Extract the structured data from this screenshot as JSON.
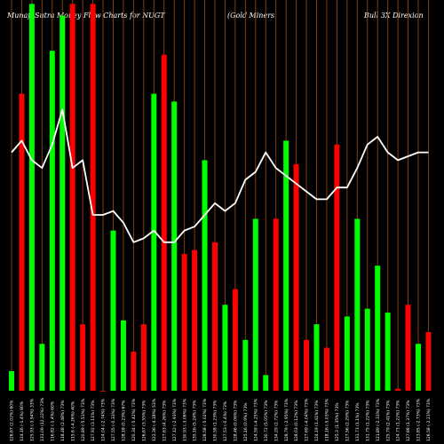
{
  "header": {
    "left": "MunafaSutra Money Flow Charts for NUGT",
    "middle": "(Gold Miners",
    "right": "Bull 3X  Direxion"
  },
  "chart_data": {
    "type": "bar",
    "title": "MunafaSutra Money Flow Charts for NUGT",
    "subtitle": "(Gold Miners Bull 3X Direxion",
    "colors": {
      "up": "#00ff00",
      "down": "#ff0000",
      "line": "#ffffff",
      "grid": "#8B4513",
      "background": "#000000"
    },
    "ylim": [
      0,
      100
    ],
    "categories": [
      "126.67 (2.02%) 60%",
      "124.16 (-1.4%) 80%",
      "125.93 (-3.94%) 33%",
      "131.09 (12.22%) 73%",
      "116.82 (-1.4%) 60%",
      "118.48 (2.48%) 73%",
      "115.6 (-4.26%) 40%",
      "120.89 (-5.51%) 73%",
      "127.92 (3.11%) 73%",
      "124.04 (-2.74%) 73%",
      "127.55 (-0.33%) 73%",
      "128.18 (0.23%) 67%",
      "120.34 (-5.42%) 73%",
      "126.67 (3.55%) 73%",
      "122.36 (-4.18%) 53%",
      "127.63 (4.26%) 73%",
      "127.12 (-2.93%) 73%",
      "130.93 (-3.06%) 73%",
      "135.16 (5.24%) 73%",
      "128.58 (-5.02%) 73%",
      "130.58 (1.23%) 73%",
      "127.53 (-0.4%) 73%",
      "128.46 (0.06%) 73%",
      "125.16 (0.9%) 73%",
      "124.59 (-4.25%) 73%",
      "130.72 (5.05%) 73%",
      "134.29 (2.72%) 73%",
      "128.79 (-2.95%) 73%",
      "128.03 (0.12%) 73%",
      "127.69 (-4.04%) 73%",
      "124.19 (1.41%) 73%",
      "118.16 (-5.03%) 73%",
      "125.3 (1.35%) 73%",
      "127.56 (2.29%) 73%",
      "131.73 (1.1%) 73%",
      "131.75 (1.22%) 73%",
      "121.89 (-2.33%) 73%",
      "125.79 (2.41%) 73%",
      "124.73 (1.22%) 73%",
      "127.88 (1.37%) 73%",
      "123.85 (-2.73%) 73%",
      "126.58 (-2.21%) 73%"
    ],
    "series": [
      {
        "values": [
          5,
          76,
          99,
          12,
          87,
          96,
          99,
          17,
          99,
          0,
          41,
          18,
          10,
          17,
          76,
          86,
          74,
          35,
          36,
          59,
          38,
          22,
          26,
          13,
          44,
          4,
          44,
          64,
          58,
          13,
          17,
          11,
          63,
          19,
          44,
          21,
          32,
          20,
          0.5,
          22,
          12,
          15
        ],
        "colors": [
          "g",
          "r",
          "g",
          "g",
          "g",
          "g",
          "r",
          "r",
          "r",
          "r",
          "g",
          "g",
          "r",
          "r",
          "g",
          "r",
          "g",
          "r",
          "r",
          "g",
          "r",
          "g",
          "r",
          "g",
          "g",
          "g",
          "r",
          "g",
          "r",
          "r",
          "g",
          "r",
          "r",
          "g",
          "g",
          "g",
          "g",
          "g",
          "r",
          "r",
          "g",
          "r"
        ]
      }
    ],
    "line": {
      "name": "price",
      "values": [
        61,
        64,
        59,
        57,
        63,
        72,
        57,
        59,
        45,
        45,
        46,
        43,
        38,
        39,
        41,
        38,
        38,
        41,
        42,
        45,
        48,
        46,
        48,
        54,
        56,
        61,
        57,
        55,
        53,
        51,
        49,
        49,
        52,
        52,
        57,
        63,
        65,
        61,
        59,
        60,
        61,
        61
      ]
    }
  }
}
